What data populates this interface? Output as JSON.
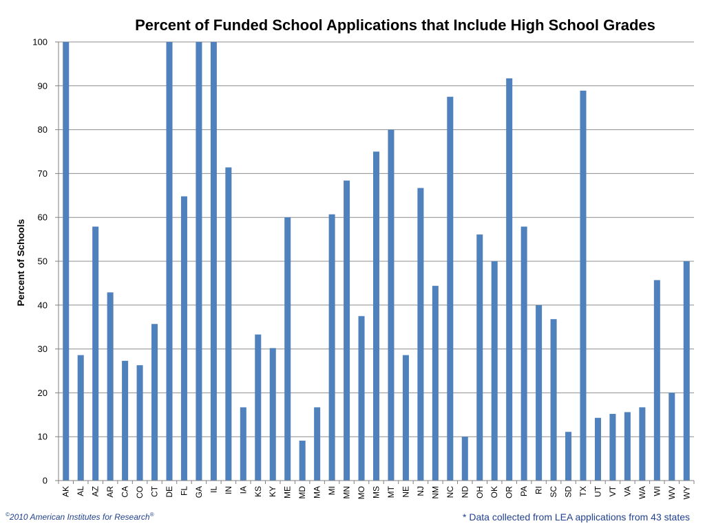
{
  "chart_data": {
    "type": "bar",
    "title": "Percent of Funded School Applications that Include High School Grades",
    "ylabel": "Percent of Schools",
    "xlabel": "",
    "ylim": [
      0,
      100
    ],
    "yticks": [
      0,
      10,
      20,
      30,
      40,
      50,
      60,
      70,
      80,
      90,
      100
    ],
    "grid": true,
    "bar_color": "#4f81bd",
    "categories": [
      "AK",
      "AL",
      "AZ",
      "AR",
      "CA",
      "CO",
      "CT",
      "DE",
      "FL",
      "GA",
      "IL",
      "IN",
      "IA",
      "KS",
      "KY",
      "ME",
      "MD",
      "MA",
      "MI",
      "MN",
      "MO",
      "MS",
      "MT",
      "NE",
      "NJ",
      "NM",
      "NC",
      "ND",
      "OH",
      "OK",
      "OR",
      "PA",
      "RI",
      "SC",
      "SD",
      "TX",
      "UT",
      "VT",
      "VA",
      "WA",
      "WI",
      "WV",
      "WY"
    ],
    "values": [
      100,
      28.6,
      57.9,
      42.9,
      27.3,
      26.3,
      35.7,
      100,
      64.8,
      100,
      100,
      71.4,
      16.7,
      33.3,
      30.2,
      60.0,
      9.1,
      16.7,
      60.7,
      68.4,
      37.5,
      75.0,
      80.0,
      28.6,
      66.7,
      44.4,
      87.5,
      10.0,
      56.1,
      50.0,
      91.7,
      57.9,
      40.0,
      36.8,
      11.1,
      88.9,
      14.3,
      15.2,
      15.6,
      16.7,
      45.7,
      20.0,
      50.0
    ]
  },
  "footer": {
    "copyright_symbol": "©",
    "copyright_text": "2010 American Institutes for Research",
    "registered_symbol": "®",
    "note": "* Data collected from LEA applications from 43 states"
  }
}
